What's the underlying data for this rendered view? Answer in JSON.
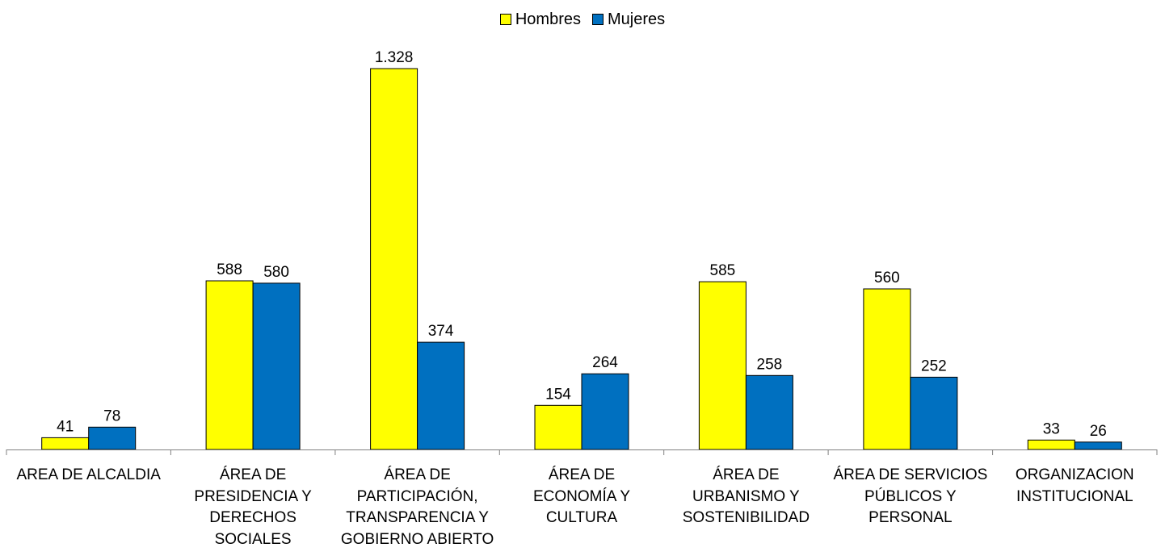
{
  "chart_data": {
    "type": "bar",
    "categories": [
      "AREA DE ALCALDIA",
      "ÁREA DE\nPRESIDENCIA Y\nDERECHOS\nSOCIALES",
      "ÁREA DE\nPARTICIPACIÓN,\nTRANSPARENCIA Y\nGOBIERNO ABIERTO",
      "ÁREA DE\nECONOMÍA Y\nCULTURA",
      "ÁREA DE\nURBANISMO Y\nSOSTENIBILIDAD",
      "ÁREA DE SERVICIOS\nPÚBLICOS Y\nPERSONAL",
      "ORGANIZACION\nINSTITUCIONAL"
    ],
    "series": [
      {
        "name": "Hombres",
        "color": "#FFFF00",
        "values": [
          41,
          588,
          1328,
          154,
          585,
          560,
          33
        ],
        "labels": [
          "41",
          "588",
          "1.328",
          "154",
          "585",
          "560",
          "33"
        ]
      },
      {
        "name": "Mujeres",
        "color": "#0070C0",
        "values": [
          78,
          580,
          374,
          264,
          258,
          252,
          26
        ],
        "labels": [
          "78",
          "580",
          "374",
          "264",
          "258",
          "252",
          "26"
        ]
      }
    ],
    "ylim": [
      0,
      1328
    ],
    "grid": false,
    "legend_position": "top-center"
  }
}
